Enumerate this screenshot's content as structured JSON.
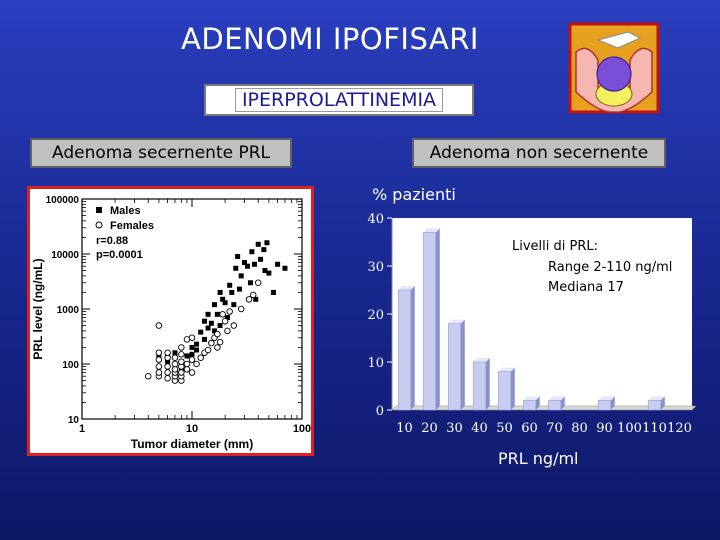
{
  "title": "ADENOMI IPOFISARI",
  "subtitle": "IPERPROLATTINEMIA",
  "left_label": "Adenoma secernente PRL",
  "right_label": "Adenoma non secernente",
  "pazienti_label": "% pazienti",
  "prl_axis_label": "PRL ng/ml",
  "colors": {
    "background": "#1f2fa8",
    "bar_fill": "#c8ccf0",
    "scatter_border": "#e02020"
  },
  "chart_data": [
    {
      "type": "scatter",
      "title": "",
      "xlabel": "Tumor diameter (mm)",
      "ylabel": "PRL level (ng/mL)",
      "xscale": "log",
      "yscale": "log",
      "xlim": [
        1,
        100
      ],
      "ylim": [
        10,
        100000
      ],
      "xticks": [
        "1",
        "10",
        "100"
      ],
      "yticks": [
        "10",
        "100",
        "1000",
        "10000",
        "100000"
      ],
      "legend": {
        "position": "top-left",
        "entries": [
          "Males",
          "Females"
        ],
        "stats": [
          "r=0.88",
          "p=0.0001"
        ]
      },
      "series": [
        {
          "name": "Males",
          "marker": "filled-square",
          "points": [
            [
              5,
              130
            ],
            [
              5,
              160
            ],
            [
              6,
              120
            ],
            [
              6,
              150
            ],
            [
              6,
              110
            ],
            [
              7,
              160
            ],
            [
              7,
              100
            ],
            [
              7,
              80
            ],
            [
              8,
              80
            ],
            [
              8,
              110
            ],
            [
              9,
              140
            ],
            [
              10,
              150
            ],
            [
              10,
              200
            ],
            [
              11,
              180
            ],
            [
              11,
              230
            ],
            [
              12,
              380
            ],
            [
              13,
              280
            ],
            [
              13,
              600
            ],
            [
              14,
              450
            ],
            [
              14,
              800
            ],
            [
              15,
              550
            ],
            [
              16,
              400
            ],
            [
              16,
              1200
            ],
            [
              17,
              800
            ],
            [
              18,
              2000
            ],
            [
              18,
              500
            ],
            [
              19,
              1500
            ],
            [
              20,
              1300
            ],
            [
              21,
              700
            ],
            [
              22,
              2700
            ],
            [
              23,
              2000
            ],
            [
              24,
              1200
            ],
            [
              25,
              5500
            ],
            [
              26,
              9000
            ],
            [
              27,
              2300
            ],
            [
              28,
              4000
            ],
            [
              30,
              7000
            ],
            [
              32,
              6000
            ],
            [
              34,
              3000
            ],
            [
              35,
              11000
            ],
            [
              37,
              6500
            ],
            [
              38,
              1500
            ],
            [
              40,
              15000
            ],
            [
              42,
              8000
            ],
            [
              45,
              12000
            ],
            [
              46,
              5000
            ],
            [
              48,
              16000
            ],
            [
              50,
              4500
            ],
            [
              55,
              2000
            ],
            [
              60,
              6500
            ],
            [
              70,
              5500
            ]
          ]
        },
        {
          "name": "Females",
          "marker": "open-circle",
          "points": [
            [
              4,
              60
            ],
            [
              5,
              60
            ],
            [
              5,
              70
            ],
            [
              5,
              90
            ],
            [
              5,
              120
            ],
            [
              5,
              160
            ],
            [
              5,
              500
            ],
            [
              6,
              55
            ],
            [
              6,
              70
            ],
            [
              6,
              90
            ],
            [
              6,
              130
            ],
            [
              6,
              160
            ],
            [
              7,
              50
            ],
            [
              7,
              60
            ],
            [
              7,
              70
            ],
            [
              7,
              80
            ],
            [
              7,
              100
            ],
            [
              7,
              130
            ],
            [
              8,
              50
            ],
            [
              8,
              60
            ],
            [
              8,
              70
            ],
            [
              8,
              90
            ],
            [
              8,
              110
            ],
            [
              8,
              150
            ],
            [
              8,
              200
            ],
            [
              9,
              80
            ],
            [
              9,
              100
            ],
            [
              9,
              280
            ],
            [
              10,
              70
            ],
            [
              10,
              120
            ],
            [
              10,
              300
            ],
            [
              11,
              100
            ],
            [
              12,
              130
            ],
            [
              13,
              160
            ],
            [
              14,
              180
            ],
            [
              15,
              240
            ],
            [
              16,
              300
            ],
            [
              17,
              200
            ],
            [
              17,
              350
            ],
            [
              18,
              250
            ],
            [
              19,
              800
            ],
            [
              20,
              600
            ],
            [
              21,
              400
            ],
            [
              22,
              900
            ],
            [
              24,
              500
            ],
            [
              28,
              1000
            ],
            [
              33,
              1500
            ],
            [
              36,
              1800
            ],
            [
              40,
              3000
            ]
          ]
        }
      ]
    },
    {
      "type": "bar",
      "title": "",
      "xlabel": "PRL ng/ml",
      "ylabel": "% pazienti",
      "categories": [
        "10",
        "20",
        "30",
        "40",
        "50",
        "60",
        "70",
        "80",
        "90",
        "100",
        "110",
        "120"
      ],
      "values": [
        25,
        37,
        18,
        10,
        8,
        2,
        2,
        0,
        2,
        0,
        2,
        0
      ],
      "ylim": [
        0,
        40
      ],
      "yticks": [
        "0",
        "10",
        "20",
        "30",
        "40"
      ],
      "annotation": [
        "Livelli di PRL:",
        "Range 2-110 ng/ml",
        "Mediana 17"
      ]
    }
  ]
}
